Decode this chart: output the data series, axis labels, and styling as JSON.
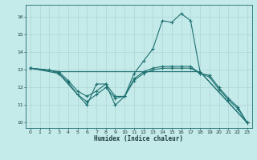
{
  "title": "",
  "xlabel": "Humidex (Indice chaleur)",
  "background_color": "#c5eaea",
  "grid_color": "#aed4d4",
  "line_color": "#1e7070",
  "xlim": [
    -0.5,
    23.5
  ],
  "ylim": [
    9.7,
    16.7
  ],
  "yticks": [
    10,
    11,
    12,
    13,
    14,
    15,
    16
  ],
  "xticks": [
    0,
    1,
    2,
    3,
    4,
    5,
    6,
    7,
    8,
    9,
    10,
    11,
    12,
    13,
    14,
    15,
    16,
    17,
    18,
    19,
    20,
    21,
    22,
    23
  ],
  "lines": [
    {
      "x": [
        0,
        2,
        3,
        6,
        7,
        8,
        9,
        10,
        11,
        12,
        13,
        14,
        15,
        16,
        17,
        18,
        23
      ],
      "y": [
        13.1,
        13.0,
        12.8,
        11.0,
        12.2,
        12.2,
        11.5,
        11.5,
        12.8,
        13.5,
        14.2,
        15.8,
        15.7,
        16.2,
        15.8,
        12.9,
        10.0
      ]
    },
    {
      "x": [
        0,
        3,
        4,
        5,
        6,
        7,
        8,
        9,
        10,
        11,
        12,
        13,
        14,
        15,
        16,
        17,
        18,
        19,
        20,
        21,
        22,
        23
      ],
      "y": [
        13.1,
        12.9,
        12.4,
        11.8,
        11.5,
        11.8,
        12.2,
        11.0,
        11.5,
        12.5,
        12.9,
        13.1,
        13.2,
        13.2,
        13.2,
        13.2,
        12.8,
        12.7,
        12.0,
        11.4,
        10.9,
        10.0
      ]
    },
    {
      "x": [
        0,
        3,
        4,
        5,
        6,
        7,
        8,
        9,
        10,
        11,
        12,
        13,
        14,
        15,
        16,
        17,
        18,
        19,
        20,
        21,
        22,
        23
      ],
      "y": [
        13.1,
        12.8,
        12.3,
        11.6,
        11.2,
        11.6,
        12.0,
        11.4,
        11.5,
        12.4,
        12.8,
        13.0,
        13.1,
        13.1,
        13.1,
        13.1,
        12.8,
        12.6,
        11.9,
        11.3,
        10.8,
        10.0
      ]
    },
    {
      "x": [
        0,
        3,
        18,
        23
      ],
      "y": [
        13.1,
        12.9,
        12.9,
        10.0
      ]
    }
  ]
}
